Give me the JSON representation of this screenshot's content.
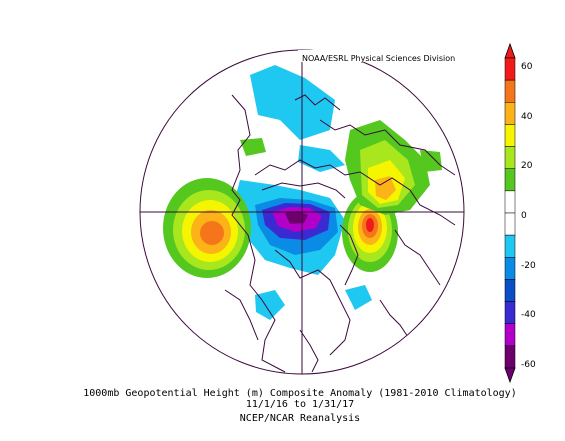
{
  "map": {
    "credit": "NOAA/ESRL Physical Sciences Division",
    "projection": "north-polar-stereographic",
    "anomaly_centers": [
      {
        "region": "North Pacific / Gulf of Alaska",
        "sign": "positive",
        "approx_max_m": 50
      },
      {
        "region": "North Atlantic / Iceland",
        "sign": "positive",
        "approx_max_m": 60
      },
      {
        "region": "Siberia / Eurasia",
        "sign": "positive",
        "approx_max_m": 40
      },
      {
        "region": "Arctic Ocean / Canadian Arctic",
        "sign": "negative",
        "approx_min_m": -55
      }
    ]
  },
  "colorbar": {
    "ticks": [
      "60",
      "40",
      "20",
      "0",
      "-20",
      "-40",
      "-60"
    ],
    "colors": [
      "#f11a1a",
      "#f5751a",
      "#fbb318",
      "#f5f500",
      "#a8e61e",
      "#54c81e",
      "#ffffff",
      "#ffffff",
      "#1ec8f0",
      "#0a8ce6",
      "#0a4fc8",
      "#3a2ad2",
      "#b200c8",
      "#6e006e"
    ]
  },
  "caption": {
    "line1": "1000mb Geopotential Height (m) Composite Anomaly (1981-2010 Climatology)",
    "line2": "11/1/16  to 1/31/17",
    "line3": "NCEP/NCAR Reanalysis"
  }
}
